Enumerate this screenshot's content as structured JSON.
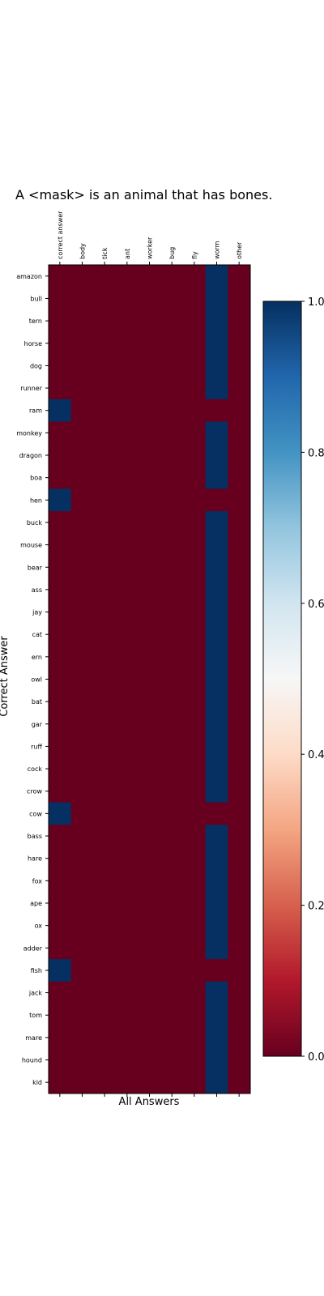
{
  "chart_data": {
    "type": "heatmap",
    "title": "A <mask> is an animal that has bones.",
    "xlabel": "All Answers",
    "ylabel": "Correct Answer",
    "columns": [
      "correct answer",
      "body",
      "tick",
      "ant",
      "worker",
      "bug",
      "fly",
      "worm",
      "other"
    ],
    "rows": [
      "amazon",
      "bull",
      "tern",
      "horse",
      "dog",
      "runner",
      "ram",
      "monkey",
      "dragon",
      "boa",
      "hen",
      "buck",
      "mouse",
      "bear",
      "ass",
      "jay",
      "cat",
      "ern",
      "owl",
      "bat",
      "gar",
      "ruff",
      "cock",
      "crow",
      "cow",
      "bass",
      "hare",
      "fox",
      "ape",
      "ox",
      "adder",
      "fish",
      "jack",
      "tom",
      "mare",
      "hound",
      "kid"
    ],
    "values": [
      [
        0,
        0,
        0,
        0,
        0,
        0,
        0,
        1,
        0
      ],
      [
        0,
        0,
        0,
        0,
        0,
        0,
        0,
        1,
        0
      ],
      [
        0,
        0,
        0,
        0,
        0,
        0,
        0,
        1,
        0
      ],
      [
        0,
        0,
        0,
        0,
        0,
        0,
        0,
        1,
        0
      ],
      [
        0,
        0,
        0,
        0,
        0,
        0,
        0,
        1,
        0
      ],
      [
        0,
        0,
        0,
        0,
        0,
        0,
        0,
        1,
        0
      ],
      [
        1,
        0,
        0,
        0,
        0,
        0,
        0,
        0,
        0
      ],
      [
        0,
        0,
        0,
        0,
        0,
        0,
        0,
        1,
        0
      ],
      [
        0,
        0,
        0,
        0,
        0,
        0,
        0,
        1,
        0
      ],
      [
        0,
        0,
        0,
        0,
        0,
        0,
        0,
        1,
        0
      ],
      [
        1,
        0,
        0,
        0,
        0,
        0,
        0,
        0,
        0
      ],
      [
        0,
        0,
        0,
        0,
        0,
        0,
        0,
        1,
        0
      ],
      [
        0,
        0,
        0,
        0,
        0,
        0,
        0,
        1,
        0
      ],
      [
        0,
        0,
        0,
        0,
        0,
        0,
        0,
        1,
        0
      ],
      [
        0,
        0,
        0,
        0,
        0,
        0,
        0,
        1,
        0
      ],
      [
        0,
        0,
        0,
        0,
        0,
        0,
        0,
        1,
        0
      ],
      [
        0,
        0,
        0,
        0,
        0,
        0,
        0,
        1,
        0
      ],
      [
        0,
        0,
        0,
        0,
        0,
        0,
        0,
        1,
        0
      ],
      [
        0,
        0,
        0,
        0,
        0,
        0,
        0,
        1,
        0
      ],
      [
        0,
        0,
        0,
        0,
        0,
        0,
        0,
        1,
        0
      ],
      [
        0,
        0,
        0,
        0,
        0,
        0,
        0,
        1,
        0
      ],
      [
        0,
        0,
        0,
        0,
        0,
        0,
        0,
        1,
        0
      ],
      [
        0,
        0,
        0,
        0,
        0,
        0,
        0,
        1,
        0
      ],
      [
        0,
        0,
        0,
        0,
        0,
        0,
        0,
        1,
        0
      ],
      [
        1,
        0,
        0,
        0,
        0,
        0,
        0,
        0,
        0
      ],
      [
        0,
        0,
        0,
        0,
        0,
        0,
        0,
        1,
        0
      ],
      [
        0,
        0,
        0,
        0,
        0,
        0,
        0,
        1,
        0
      ],
      [
        0,
        0,
        0,
        0,
        0,
        0,
        0,
        1,
        0
      ],
      [
        0,
        0,
        0,
        0,
        0,
        0,
        0,
        1,
        0
      ],
      [
        0,
        0,
        0,
        0,
        0,
        0,
        0,
        1,
        0
      ],
      [
        0,
        0,
        0,
        0,
        0,
        0,
        0,
        1,
        0
      ],
      [
        1,
        0,
        0,
        0,
        0,
        0,
        0,
        0,
        0
      ],
      [
        0,
        0,
        0,
        0,
        0,
        0,
        0,
        1,
        0
      ],
      [
        0,
        0,
        0,
        0,
        0,
        0,
        0,
        1,
        0
      ],
      [
        0,
        0,
        0,
        0,
        0,
        0,
        0,
        1,
        0
      ],
      [
        0,
        0,
        0,
        0,
        0,
        0,
        0,
        1,
        0
      ],
      [
        0,
        0,
        0,
        0,
        0,
        0,
        0,
        1,
        0
      ]
    ],
    "colormap": "RdBu",
    "vmin": 0,
    "vmax": 1,
    "colorbar_ticks": [
      "0.0",
      "0.2",
      "0.4",
      "0.6",
      "0.8",
      "1.0"
    ],
    "colors": {
      "low": "#67001f",
      "high": "#053061"
    }
  }
}
